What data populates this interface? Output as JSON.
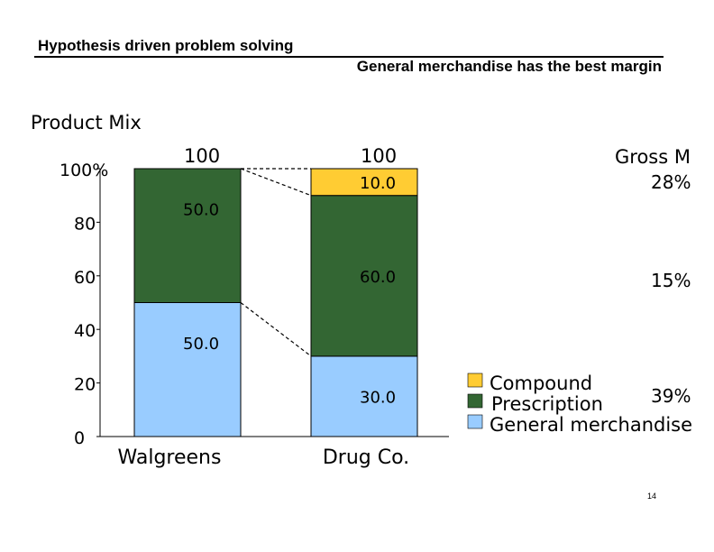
{
  "slide": {
    "title": "Hypothesis driven problem solving",
    "subtitle": "General merchandise has the best margin",
    "page_number": "14"
  },
  "chart_data": {
    "type": "bar",
    "stacked": true,
    "title": "Product Mix",
    "categories": [
      "Walgreens",
      "Drug Co."
    ],
    "totals": [
      "100",
      "100"
    ],
    "y_ticks": [
      "0",
      "20",
      "40",
      "60",
      "80",
      "100%"
    ],
    "ylim": [
      0,
      100
    ],
    "series": [
      {
        "name": "General merchandise",
        "values": [
          50,
          30
        ],
        "labels": [
          "50.0",
          "30.0"
        ],
        "color": "#99ccff"
      },
      {
        "name": "Prescription",
        "values": [
          50,
          60
        ],
        "labels": [
          "50.0",
          "60.0"
        ],
        "color": "#336633"
      },
      {
        "name": "Compound",
        "values": [
          0,
          10
        ],
        "labels": [
          "",
          "10.0"
        ],
        "color": "#ffcc33"
      }
    ],
    "legend_order": [
      "Compound",
      "Prescription",
      "General merchandise"
    ],
    "legend_position": "bottom-right",
    "gross_margin": {
      "header": "Gross M",
      "values": [
        {
          "series": "Compound",
          "label": "28%"
        },
        {
          "series": "Prescription",
          "label": "15%"
        },
        {
          "series": "General merchandise",
          "label": "39%"
        }
      ]
    }
  }
}
